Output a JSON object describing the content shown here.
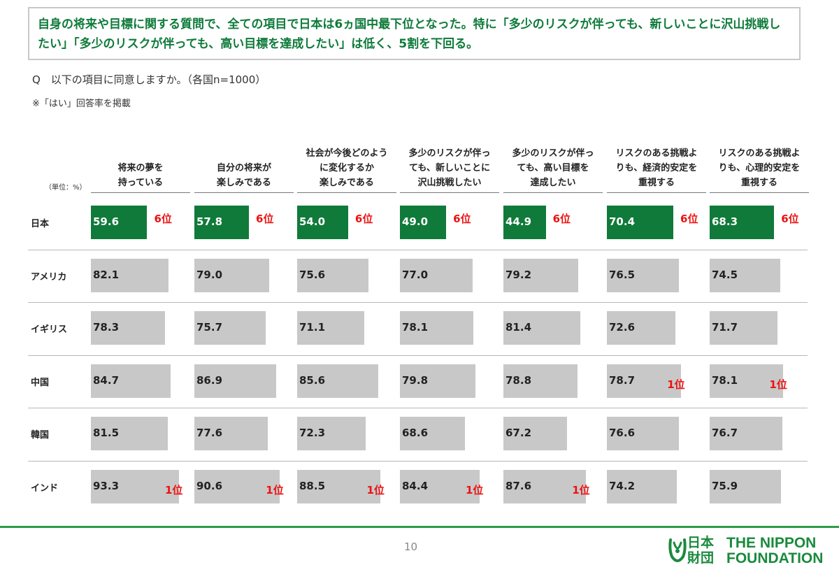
{
  "headline": "自身の将来や目標に関する質問で、全ての項目で日本は6ヵ国中最下位となった。特に「多少のリスクが伴っても、新しいことに沢山挑戦したい」「多少のリスクが伴っても、高い目標を達成したい」は低く、5割を下回る。",
  "question": "Q　以下の項目に同意しますか。（各国n=1000）",
  "note": "※「はい」回答率を掲載",
  "page_number": "10",
  "logo": {
    "jp": "日本\n財団",
    "en": "THE NIPPON\nFOUNDATION"
  },
  "colors": {
    "japan_bar": "#107a3a",
    "other_bar": "#c8c8c8",
    "rank": "#ee1111",
    "headline": "#0e7a3a"
  },
  "chart_data": {
    "type": "bar",
    "unit_label": "（単位：%）",
    "categories": [
      "将来の夢を\n持っている",
      "自分の将来が\n楽しみである",
      "社会が今後どのよう\nに変化するか\n楽しみである",
      "多少のリスクが伴っ\nても、新しいことに\n沢山挑戦したい",
      "多少のリスクが伴っ\nても、高い目標を\n達成したい",
      "リスクのある挑戦よ\nりも、経済的安定を\n重視する",
      "リスクのある挑戦よ\nりも、心理的安定を\n重視する"
    ],
    "xlim": [
      0,
      100
    ],
    "series": [
      {
        "name": "日本",
        "values": [
          59.6,
          57.8,
          54.0,
          49.0,
          44.9,
          70.4,
          68.3
        ],
        "value_labels": [
          "59.6",
          "57.8",
          "54.0",
          "49.0",
          "44.9",
          "70.4",
          "68.3"
        ],
        "highlight": true,
        "ranks": [
          "6位",
          "6位",
          "6位",
          "6位",
          "6位",
          "6位",
          "6位"
        ]
      },
      {
        "name": "アメリカ",
        "values": [
          82.1,
          79.0,
          75.6,
          77.0,
          79.2,
          76.5,
          74.5
        ],
        "value_labels": [
          "82.1",
          "79.0",
          "75.6",
          "77.0",
          "79.2",
          "76.5",
          "74.5"
        ],
        "ranks": [
          "",
          "",
          "",
          "",
          "",
          "",
          ""
        ]
      },
      {
        "name": "イギリス",
        "values": [
          78.3,
          75.7,
          71.1,
          78.1,
          81.4,
          72.6,
          71.7
        ],
        "value_labels": [
          "78.3",
          "75.7",
          "71.1",
          "78.1",
          "81.4",
          "72.6",
          "71.7"
        ],
        "ranks": [
          "",
          "",
          "",
          "",
          "",
          "",
          ""
        ]
      },
      {
        "name": "中国",
        "values": [
          84.7,
          86.9,
          85.6,
          79.8,
          78.8,
          78.7,
          78.1
        ],
        "value_labels": [
          "84.7",
          "86.9",
          "85.6",
          "79.8",
          "78.8",
          "78.7",
          "78.1"
        ],
        "ranks": [
          "",
          "",
          "",
          "",
          "",
          "1位",
          "1位"
        ]
      },
      {
        "name": "韓国",
        "values": [
          81.5,
          77.6,
          72.3,
          68.6,
          67.2,
          76.6,
          76.7
        ],
        "value_labels": [
          "81.5",
          "77.6",
          "72.3",
          "68.6",
          "67.2",
          "76.6",
          "76.7"
        ],
        "ranks": [
          "",
          "",
          "",
          "",
          "",
          "",
          ""
        ]
      },
      {
        "name": "インド",
        "values": [
          93.3,
          90.6,
          88.5,
          84.4,
          87.6,
          74.2,
          75.9
        ],
        "value_labels": [
          "93.3",
          "90.6",
          "88.5",
          "84.4",
          "87.6",
          "74.2",
          "75.9"
        ],
        "ranks": [
          "1位",
          "1位",
          "1位",
          "1位",
          "1位",
          "",
          ""
        ]
      }
    ]
  }
}
